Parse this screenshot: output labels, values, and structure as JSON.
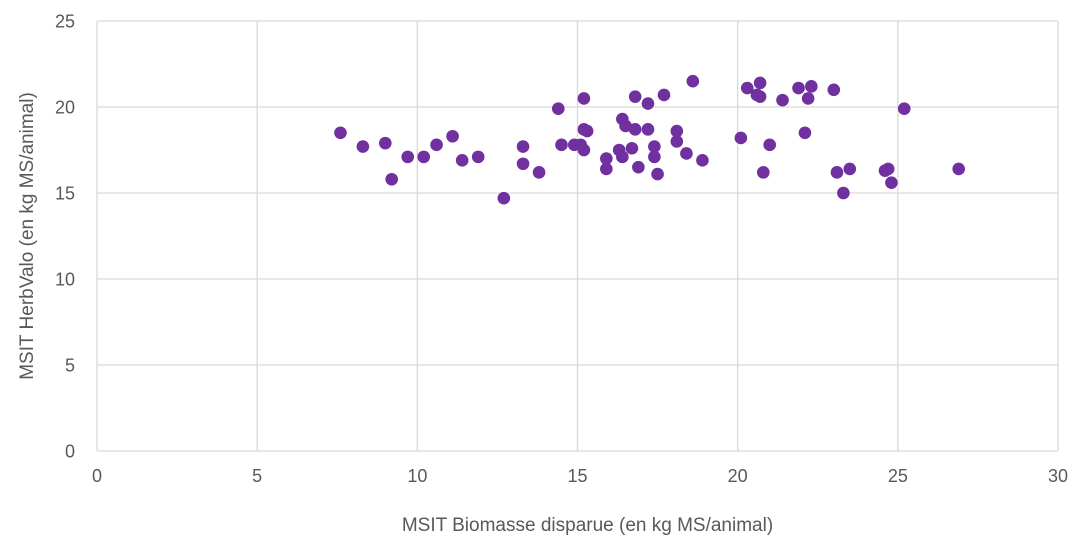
{
  "chart_data": {
    "type": "scatter",
    "xlabel": "MSIT Biomasse disparue (en kg MS/animal)",
    "ylabel": "MSIT HerbValo (en kg MS/animal)",
    "xlim": [
      0,
      30
    ],
    "ylim": [
      0,
      25
    ],
    "xticks": [
      0,
      5,
      10,
      15,
      20,
      25,
      30
    ],
    "yticks": [
      0,
      5,
      10,
      15,
      20,
      25
    ],
    "grid": true,
    "marker_color": "#7030A0",
    "series": [
      {
        "points": [
          [
            7.6,
            18.5
          ],
          [
            8.3,
            17.7
          ],
          [
            9.0,
            17.9
          ],
          [
            9.2,
            15.8
          ],
          [
            9.7,
            17.1
          ],
          [
            10.2,
            17.1
          ],
          [
            10.6,
            17.8
          ],
          [
            11.1,
            18.3
          ],
          [
            11.4,
            16.9
          ],
          [
            11.9,
            17.1
          ],
          [
            12.7,
            14.7
          ],
          [
            13.3,
            17.7
          ],
          [
            13.3,
            16.7
          ],
          [
            13.8,
            16.2
          ],
          [
            14.4,
            19.9
          ],
          [
            14.5,
            17.8
          ],
          [
            14.9,
            17.8
          ],
          [
            15.1,
            17.8
          ],
          [
            15.2,
            17.5
          ],
          [
            15.2,
            18.7
          ],
          [
            15.2,
            20.5
          ],
          [
            15.3,
            18.6
          ],
          [
            15.9,
            17.0
          ],
          [
            15.9,
            16.4
          ],
          [
            16.3,
            17.5
          ],
          [
            16.4,
            19.3
          ],
          [
            16.4,
            17.1
          ],
          [
            16.5,
            18.9
          ],
          [
            16.7,
            17.6
          ],
          [
            16.8,
            20.6
          ],
          [
            16.8,
            18.7
          ],
          [
            16.9,
            16.5
          ],
          [
            17.2,
            20.2
          ],
          [
            17.2,
            18.7
          ],
          [
            17.4,
            17.1
          ],
          [
            17.4,
            17.7
          ],
          [
            17.5,
            16.1
          ],
          [
            17.7,
            20.7
          ],
          [
            18.1,
            18.6
          ],
          [
            18.1,
            18.0
          ],
          [
            18.4,
            17.3
          ],
          [
            18.6,
            21.5
          ],
          [
            18.9,
            16.9
          ],
          [
            20.1,
            18.2
          ],
          [
            20.3,
            21.1
          ],
          [
            20.6,
            20.7
          ],
          [
            20.7,
            20.6
          ],
          [
            20.7,
            21.4
          ],
          [
            20.8,
            16.2
          ],
          [
            21.0,
            17.8
          ],
          [
            21.4,
            20.4
          ],
          [
            21.9,
            21.1
          ],
          [
            22.1,
            18.5
          ],
          [
            22.2,
            20.5
          ],
          [
            22.3,
            21.2
          ],
          [
            23.0,
            21.0
          ],
          [
            23.1,
            16.2
          ],
          [
            23.3,
            15.0
          ],
          [
            23.5,
            16.4
          ],
          [
            24.6,
            16.3
          ],
          [
            24.7,
            16.4
          ],
          [
            24.8,
            15.6
          ],
          [
            25.2,
            19.9
          ],
          [
            26.9,
            16.4
          ]
        ]
      }
    ]
  }
}
